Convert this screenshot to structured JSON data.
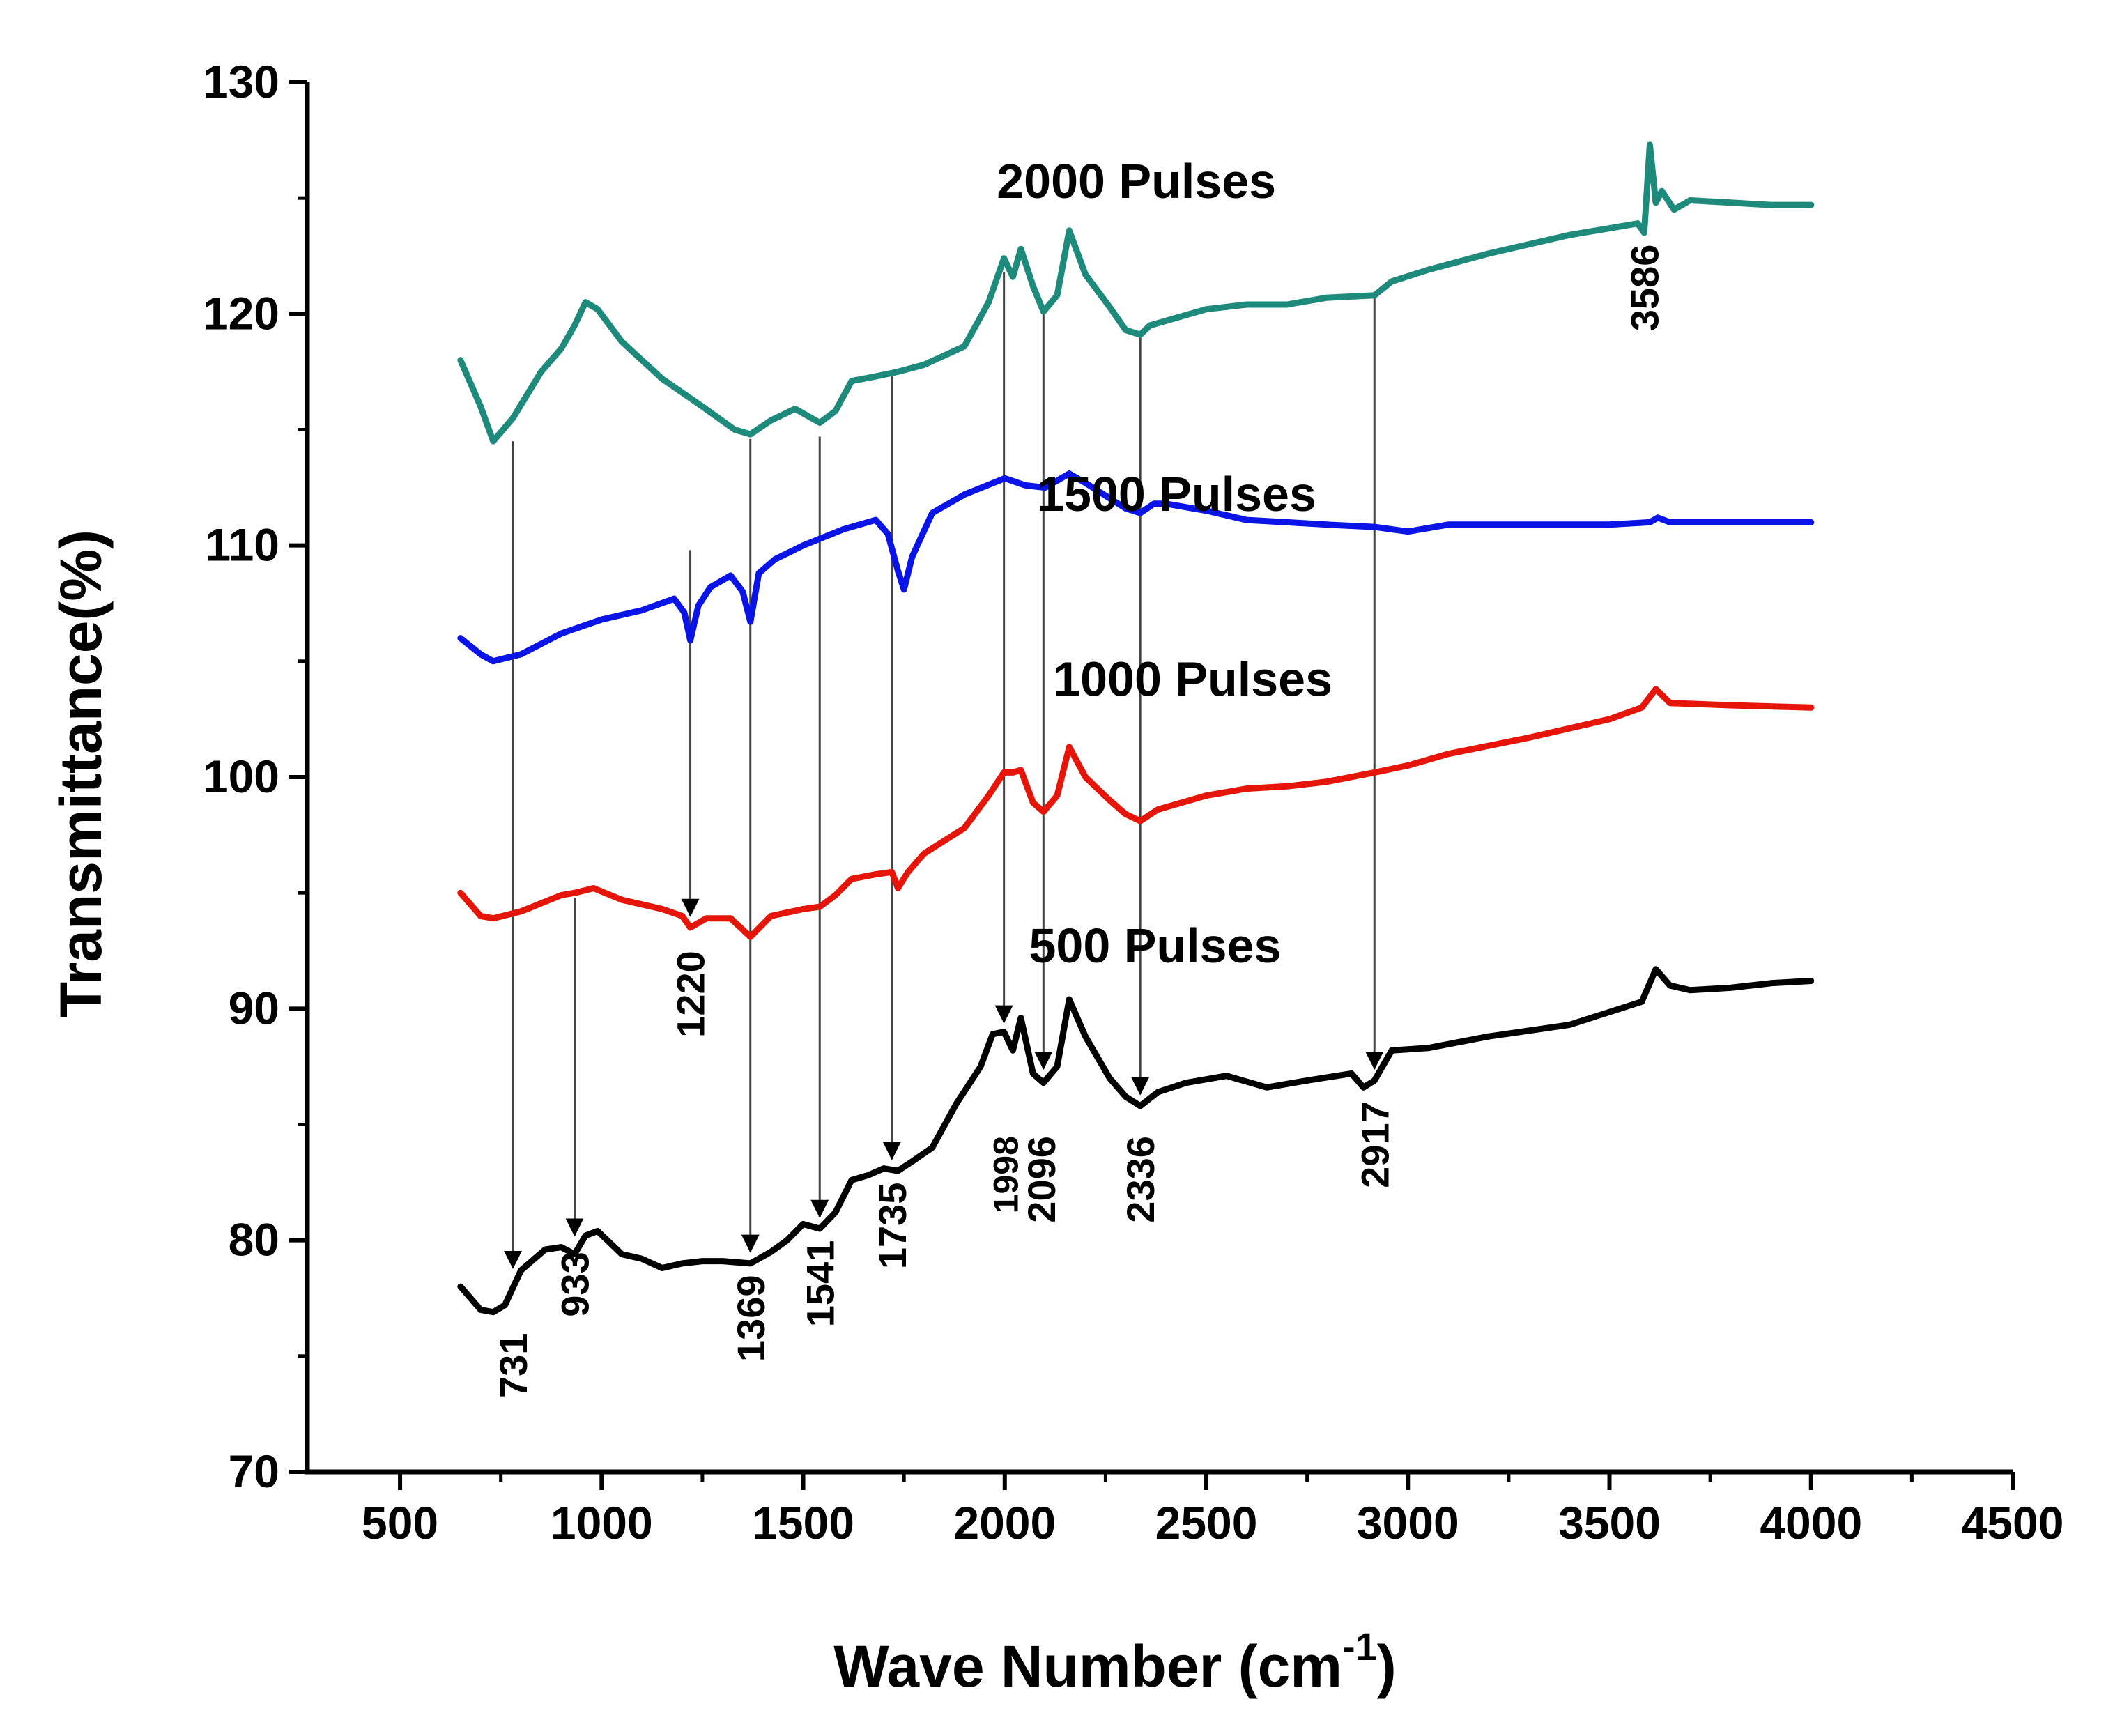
{
  "chart_data": {
    "type": "line",
    "title": "",
    "xlabel": "Wave Number (cm",
    "xlabel_superscript": "-1",
    "xlabel_close": ")",
    "ylabel": "Transmittance(%)",
    "xlim": [
      270,
      4500
    ],
    "ylim": [
      70,
      130
    ],
    "xticks": [
      500,
      1000,
      1500,
      2000,
      2500,
      3000,
      3500,
      4000,
      4500
    ],
    "yticks": [
      70,
      80,
      90,
      100,
      110,
      120,
      130
    ],
    "series": [
      {
        "name": "2000 Pulses",
        "color": "#1e8a7c",
        "x": [
          650,
          700,
          731,
          780,
          850,
          900,
          933,
          960,
          990,
          1050,
          1150,
          1250,
          1330,
          1369,
          1420,
          1480,
          1541,
          1580,
          1620,
          1680,
          1735,
          1800,
          1900,
          1960,
          1998,
          2020,
          2040,
          2070,
          2096,
          2130,
          2160,
          2200,
          2260,
          2300,
          2336,
          2360,
          2400,
          2500,
          2600,
          2700,
          2800,
          2917,
          2960,
          3050,
          3200,
          3400,
          3570,
          3586,
          3600,
          3615,
          3630,
          3660,
          3700,
          3800,
          3900,
          4000
        ],
        "values": [
          118,
          116,
          114.5,
          115.5,
          117.5,
          118.5,
          119.5,
          120.5,
          120.2,
          118.8,
          117.2,
          116,
          115,
          114.8,
          115.4,
          115.9,
          115.3,
          115.8,
          117.1,
          117.3,
          117.5,
          117.8,
          118.6,
          120.5,
          122.4,
          121.6,
          122.8,
          121.2,
          120.1,
          120.8,
          123.6,
          121.7,
          120.3,
          119.3,
          119.1,
          119.5,
          119.7,
          120.2,
          120.4,
          120.4,
          120.7,
          120.8,
          121.4,
          121.9,
          122.6,
          123.4,
          123.9,
          123.5,
          127.3,
          124.8,
          125.3,
          124.5,
          124.9,
          124.8,
          124.7,
          124.7
        ],
        "label": "2000 Pulses",
        "label_value_x": 1980
      },
      {
        "name": "1500 Pulses",
        "color": "#0a14e6",
        "x": [
          650,
          700,
          731,
          800,
          900,
          1000,
          1100,
          1180,
          1205,
          1220,
          1240,
          1270,
          1320,
          1350,
          1369,
          1390,
          1430,
          1500,
          1600,
          1680,
          1710,
          1735,
          1750,
          1770,
          1820,
          1900,
          2000,
          2050,
          2100,
          2160,
          2200,
          2300,
          2336,
          2370,
          2400,
          2500,
          2600,
          2700,
          2800,
          2917,
          3000,
          3100,
          3300,
          3500,
          3600,
          3620,
          3650,
          3800,
          4000
        ],
        "values": [
          106,
          105.3,
          105,
          105.3,
          106.2,
          106.8,
          107.2,
          107.7,
          107.1,
          105.9,
          107.4,
          108.2,
          108.7,
          108,
          106.7,
          108.8,
          109.4,
          110,
          110.7,
          111.1,
          110.5,
          108.9,
          108.1,
          109.5,
          111.4,
          112.2,
          112.9,
          112.6,
          112.5,
          113.1,
          112.7,
          111.6,
          111.4,
          111.8,
          111.8,
          111.5,
          111.1,
          111,
          110.9,
          110.8,
          110.6,
          110.9,
          110.9,
          110.9,
          111,
          111.2,
          111,
          111,
          111
        ],
        "label": "1500 Pulses",
        "label_value_x": 2080
      },
      {
        "name": "1000 Pulses",
        "color": "#e6150a",
        "x": [
          650,
          700,
          731,
          800,
          900,
          933,
          980,
          1050,
          1150,
          1200,
          1220,
          1260,
          1320,
          1369,
          1420,
          1500,
          1541,
          1580,
          1620,
          1680,
          1720,
          1735,
          1760,
          1800,
          1900,
          1960,
          1998,
          2020,
          2040,
          2070,
          2096,
          2130,
          2160,
          2200,
          2260,
          2300,
          2336,
          2380,
          2500,
          2600,
          2700,
          2800,
          2917,
          3000,
          3100,
          3300,
          3500,
          3580,
          3615,
          3650,
          3800,
          4000
        ],
        "values": [
          95,
          94,
          93.9,
          94.2,
          94.9,
          95,
          95.2,
          94.7,
          94.3,
          94,
          93.5,
          93.9,
          93.9,
          93.1,
          94,
          94.3,
          94.4,
          94.9,
          95.6,
          95.8,
          95.9,
          95.2,
          95.9,
          96.7,
          97.8,
          99.2,
          100.2,
          100.2,
          100.3,
          98.9,
          98.5,
          99.2,
          101.3,
          100,
          99,
          98.4,
          98.1,
          98.6,
          99.2,
          99.5,
          99.6,
          99.8,
          100.2,
          100.5,
          101,
          101.7,
          102.5,
          103,
          103.8,
          103.2,
          103.1,
          103
        ],
        "label": "1000 Pulses",
        "label_value_x": 2120
      },
      {
        "name": "500 Pulses",
        "color": "#000000",
        "x": [
          650,
          700,
          731,
          760,
          800,
          860,
          900,
          933,
          960,
          990,
          1050,
          1100,
          1150,
          1200,
          1250,
          1300,
          1369,
          1420,
          1460,
          1500,
          1541,
          1580,
          1620,
          1660,
          1700,
          1735,
          1770,
          1820,
          1880,
          1940,
          1970,
          1998,
          2020,
          2040,
          2070,
          2096,
          2130,
          2160,
          2200,
          2260,
          2300,
          2336,
          2380,
          2450,
          2550,
          2650,
          2750,
          2860,
          2890,
          2917,
          2960,
          3050,
          3200,
          3400,
          3580,
          3615,
          3650,
          3700,
          3800,
          3900,
          4000
        ],
        "values": [
          78,
          77,
          76.9,
          77.2,
          78.7,
          79.6,
          79.7,
          79.4,
          80.2,
          80.4,
          79.4,
          79.2,
          78.8,
          79,
          79.1,
          79.1,
          79,
          79.5,
          80,
          80.7,
          80.5,
          81.2,
          82.6,
          82.8,
          83.1,
          83,
          83.4,
          84,
          85.9,
          87.5,
          88.9,
          89,
          88.2,
          89.6,
          87.2,
          86.8,
          87.5,
          90.4,
          88.8,
          87,
          86.2,
          85.8,
          86.4,
          86.8,
          87.1,
          86.6,
          86.9,
          87.2,
          86.6,
          86.9,
          88.2,
          88.3,
          88.8,
          89.3,
          90.3,
          91.7,
          91,
          90.8,
          90.9,
          91.1,
          91.2
        ],
        "label": "500 Pulses",
        "label_value_x": 2060
      }
    ],
    "annotations": [
      {
        "label": "731",
        "x": 780,
        "from": 114.5,
        "to": 78.8,
        "text_x": 780,
        "text_y": 76,
        "size": "normal"
      },
      {
        "label": "933",
        "x": 933,
        "from": 94.8,
        "to": 80.2,
        "text_x": 933,
        "text_y": 79.5,
        "size": "normal"
      },
      {
        "label": "1220",
        "x": 1220,
        "from": 109.8,
        "to": 94,
        "text_x": 1220,
        "text_y": 92.5,
        "size": "normal"
      },
      {
        "label": "1369",
        "x": 1369,
        "from": 114.6,
        "to": 79.5,
        "text_x": 1369,
        "text_y": 78.5,
        "size": "normal"
      },
      {
        "label": "1541",
        "x": 1541,
        "from": 114.7,
        "to": 81,
        "text_x": 1541,
        "text_y": 80,
        "size": "normal"
      },
      {
        "label": "1735",
        "x": 1720,
        "from": 117.5,
        "to": 83.5,
        "text_x": 1720,
        "text_y": 82.5,
        "size": "normal"
      },
      {
        "label": "1998",
        "x": 1998,
        "from": 121.8,
        "to": 89.4,
        "text_x": 1998,
        "text_y": 84.5,
        "size": "small"
      },
      {
        "label": "2096",
        "x": 2096,
        "from": 120.2,
        "to": 87.4,
        "text_x": 2090,
        "text_y": 84.5,
        "size": "normal"
      },
      {
        "label": "2336",
        "x": 2336,
        "from": 119.2,
        "to": 86.3,
        "text_x": 2336,
        "text_y": 84.5,
        "size": "normal"
      },
      {
        "label": "2917",
        "x": 2917,
        "from": 120.8,
        "to": 87.4,
        "text_x": 2917,
        "text_y": 86,
        "size": "normal"
      },
      {
        "label": "3586",
        "x": 3586,
        "from": null,
        "to": null,
        "text_x": 3586,
        "text_y": 123,
        "size": "normal"
      }
    ]
  }
}
